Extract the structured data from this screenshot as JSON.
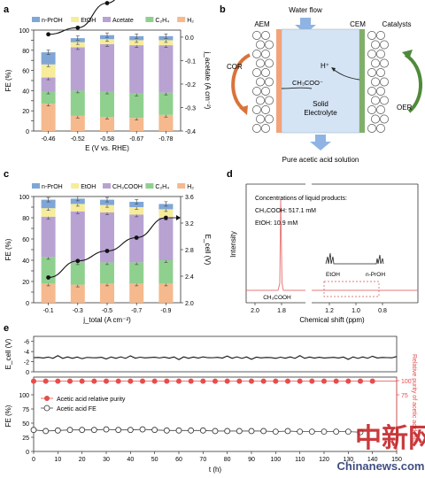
{
  "panel_labels": {
    "a": "a",
    "b": "b",
    "c": "c",
    "d": "d",
    "e": "e"
  },
  "colors": {
    "nprop": "#7fa6d6",
    "etoh": "#f6ec9a",
    "acetate": "#b8a2d2",
    "c2h4": "#8fd08f",
    "h2": "#f5b98d",
    "cem": "#7fb069",
    "aem": "#f2a37a",
    "water_arrow": "#8fb4e3",
    "cor_arrow": "#d9733a",
    "oer_arrow": "#4f8a3a",
    "nmr": "#e7797a",
    "purity": "#e64d4d"
  },
  "chart_a": {
    "type": "bar",
    "categories": [
      "-0.46",
      "-0.52",
      "-0.58",
      "-0.67",
      "-0.78"
    ],
    "series": [
      {
        "name": "H₂",
        "values": [
          27,
          15,
          14,
          13,
          16
        ]
      },
      {
        "name": "C₂H₄",
        "values": [
          12,
          25,
          25,
          24,
          22
        ]
      },
      {
        "name": "Acetate",
        "values": [
          14,
          43,
          47,
          48,
          47
        ]
      },
      {
        "name": "EtOH",
        "values": [
          13,
          5,
          5,
          5,
          5
        ]
      },
      {
        "name": "n-PrOH",
        "values": [
          12,
          4,
          4,
          4,
          4
        ]
      }
    ],
    "line": {
      "x": [
        "-0.46",
        "-0.52",
        "-0.58",
        "-0.67",
        "-0.78"
      ],
      "values": [
        0.012,
        0.04,
        0.145,
        0.27,
        0.32
      ]
    },
    "legend": [
      "n-PrOH",
      "EtOH",
      "Acetate",
      "C₂H₄",
      "H₂"
    ],
    "ylabel": "FE (%)",
    "y2label": "j_acetate (A cm⁻²)",
    "xlabel": "E (V vs. RHE)",
    "ylim": [
      0,
      100
    ],
    "y2lim": [
      0.03,
      -0.4
    ],
    "yticks": [
      "0",
      "10",
      "20",
      "30",
      "40",
      "50",
      "60",
      "70",
      "80",
      "90",
      "100"
    ],
    "y2ticks": [
      "0.0",
      "-0.1",
      "-0.2",
      "-0.3",
      "-0.4"
    ]
  },
  "chart_c": {
    "type": "bar",
    "categories": [
      "-0.1",
      "-0.3",
      "-0.5",
      "-0.7",
      "-0.9"
    ],
    "series": [
      {
        "name": "H₂",
        "values": [
          18,
          17,
          18,
          18,
          18
        ]
      },
      {
        "name": "C₂H₄",
        "values": [
          25,
          21,
          20,
          20,
          22
        ]
      },
      {
        "name": "CH₃COOH",
        "values": [
          38,
          48,
          47,
          45,
          40
        ]
      },
      {
        "name": "EtOH",
        "values": [
          8,
          7,
          7,
          7,
          8
        ]
      },
      {
        "name": "n-PrOH",
        "values": [
          8,
          5,
          5,
          5,
          5
        ]
      }
    ],
    "line": {
      "x": [
        "-0.1",
        "-0.3",
        "-0.5",
        "-0.7",
        "-0.9"
      ],
      "values": [
        2.38,
        2.63,
        2.78,
        2.98,
        3.28
      ]
    },
    "legend": [
      "n-PrOH",
      "EtOH",
      "CH₃COOH",
      "C₂H₄",
      "H₂"
    ],
    "ylabel": "FE (%)",
    "y2label": "E_cell (V)",
    "xlabel": "j_total (A cm⁻²)",
    "ylim": [
      0,
      100
    ],
    "y2lim": [
      2.0,
      3.6
    ],
    "yticks": [
      "0",
      "10",
      "20",
      "30",
      "40",
      "50",
      "60",
      "70",
      "80",
      "90",
      "100"
    ],
    "y2ticks": [
      "2.0",
      "2.4",
      "2.8",
      "3.2",
      "3.6"
    ]
  },
  "schematic_b": {
    "water_flow": "Water flow",
    "aem": "AEM",
    "cem": "CEM",
    "catalysts": "Catalysts",
    "cor": "COR",
    "oer": "OER",
    "hplus": "H⁺",
    "acetate_ion": "CH₃COO⁻",
    "electrolyte_line1": "Solid",
    "electrolyte_line2": "Electrolyte",
    "output": "Pure acetic acid solution"
  },
  "chart_d": {
    "type": "line",
    "title": "Concentrations of liquid products:",
    "line1": "CH₃COOH: 517.1 mM",
    "line2": "EtOH: 10.9 mM",
    "ylabel": "Intensity",
    "xlabel": "Chemical shift (ppm)",
    "xticks": [
      "2.0",
      "1.8",
      "1.2",
      "1.0",
      "0.8"
    ],
    "peak_labels": {
      "acetic": "CH₃COOH",
      "etoh": "EtOH",
      "nprop": "n-PrOH"
    },
    "peaks": [
      {
        "ppm": 1.83,
        "label": "CH₃COOH"
      }
    ]
  },
  "chart_e": {
    "type": "line",
    "xlabel": "t (h)",
    "xlim": [
      0,
      150
    ],
    "xticks": [
      "0",
      "10",
      "20",
      "30",
      "40",
      "50",
      "60",
      "70",
      "80",
      "90",
      "100",
      "110",
      "120",
      "130",
      "140",
      "150"
    ],
    "ecell": {
      "ylabel": "E_cell (V)",
      "yticks": [
        "-6",
        "-4",
        "-2",
        "0"
      ],
      "value": -2.8
    },
    "purity": {
      "label": "Relative purity of acetic acid (%)",
      "yticks": [
        "100",
        "75"
      ],
      "value": 99,
      "points": [
        0,
        5,
        10,
        15,
        20,
        25,
        30,
        35,
        40,
        45,
        50,
        55,
        60,
        65,
        70,
        75,
        80,
        85,
        90,
        95,
        100,
        105,
        110,
        115,
        120,
        125,
        130,
        135,
        140
      ]
    },
    "fe": {
      "ylabel": "FE (%)",
      "yticks": [
        "100",
        "75",
        "50",
        "25",
        "0"
      ],
      "points": [
        [
          0,
          38
        ],
        [
          5,
          36
        ],
        [
          10,
          37
        ],
        [
          15,
          38
        ],
        [
          20,
          38
        ],
        [
          25,
          38
        ],
        [
          30,
          39
        ],
        [
          35,
          38
        ],
        [
          40,
          38
        ],
        [
          45,
          39
        ],
        [
          50,
          38
        ],
        [
          55,
          37
        ],
        [
          60,
          37
        ],
        [
          65,
          37
        ],
        [
          70,
          37
        ],
        [
          75,
          36
        ],
        [
          80,
          36
        ],
        [
          85,
          36
        ],
        [
          90,
          36
        ],
        [
          95,
          36
        ],
        [
          100,
          35
        ],
        [
          105,
          36
        ],
        [
          110,
          35
        ],
        [
          115,
          35
        ],
        [
          120,
          35
        ],
        [
          125,
          35
        ],
        [
          130,
          35
        ],
        [
          135,
          34
        ]
      ]
    },
    "legend": [
      "Acetic acid relative purity",
      "Acetic acid FE"
    ]
  },
  "watermark": {
    "cn": "中新网",
    "en": "Chinanews.com"
  }
}
